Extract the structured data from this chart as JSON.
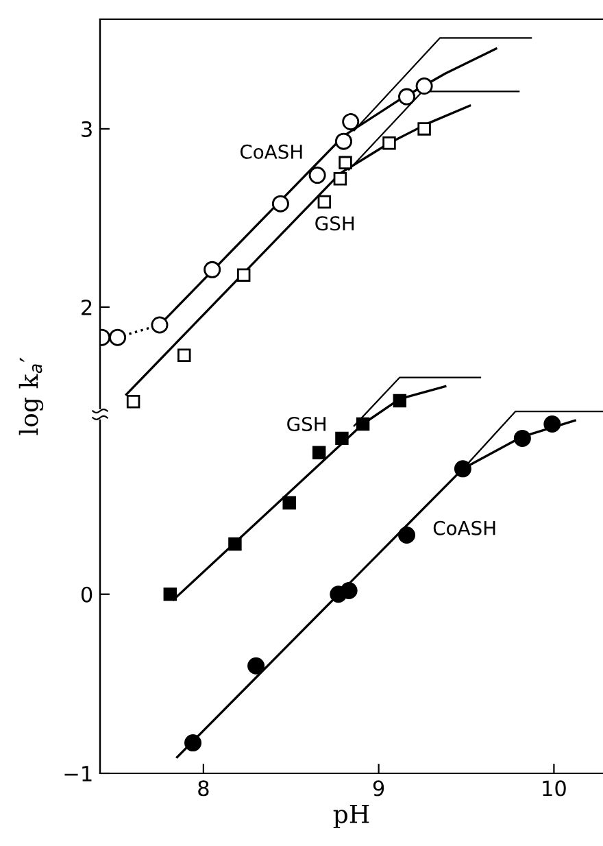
{
  "chart_data": [
    {
      "type": "scatter",
      "xlim": [
        7.41,
        10.28
      ],
      "ylim": [
        -0.615,
        3.615
      ],
      "yticks": [
        2,
        3
      ],
      "tick_labels": "y",
      "grid": false,
      "legend": false,
      "series": [
        {
          "marker": "circle",
          "color": "#ffffff",
          "x": [
            7.42,
            7.51,
            7.75,
            8.05,
            8.44,
            8.65,
            8.8,
            8.84,
            9.16,
            9.26
          ],
          "values": [
            1.83,
            1.83,
            1.9,
            2.21,
            2.58,
            2.74,
            2.93,
            3.04,
            3.18,
            3.24
          ]
        },
        {
          "marker": "square",
          "color": "#ffffff",
          "x": [
            7.6,
            7.89,
            8.23,
            8.69,
            8.78,
            8.81,
            9.06,
            9.26
          ],
          "values": [
            1.47,
            1.73,
            2.18,
            2.59,
            2.72,
            2.81,
            2.92,
            3.0
          ]
        },
        {
          "type": "line",
          "line_style": "dotted",
          "color": "#000000",
          "x": [
            7.51,
            7.75
          ],
          "values": [
            1.83,
            1.9
          ]
        },
        {
          "type": "line",
          "line_style": "solid",
          "color": "#000000",
          "x": [
            7.75,
            8.8,
            9.13,
            9.38,
            9.67
          ],
          "values": [
            1.9,
            2.96,
            3.17,
            3.31,
            3.45
          ]
        },
        {
          "type": "line",
          "line_style": "solid",
          "color": "#000000",
          "x": [
            8.86,
            9.35,
            9.87
          ],
          "values": [
            2.99,
            3.51,
            3.51
          ]
        },
        {
          "type": "line",
          "line_style": "solid",
          "color": "#000000",
          "x": [
            7.56,
            8.78,
            9.06,
            9.28,
            9.52
          ],
          "values": [
            1.51,
            2.75,
            2.92,
            3.03,
            3.13
          ]
        },
        {
          "type": "line",
          "line_style": "solid",
          "color": "#000000",
          "x": [
            8.83,
            9.25,
            9.8
          ],
          "values": [
            2.77,
            3.21,
            3.21
          ]
        }
      ],
      "annotations": [
        "CoASH",
        "GSH"
      ]
    },
    {
      "type": "scatter",
      "xlim": [
        7.41,
        10.28
      ],
      "ylim": [
        -1,
        3.21
      ],
      "xticks": [
        8,
        9,
        10
      ],
      "yticks": [
        -1,
        0
      ],
      "xlabel": "pH",
      "ylabel": "log k$_{a}$′",
      "grid": false,
      "legend": false,
      "series": [
        {
          "marker": "square",
          "color": "#000000",
          "x": [
            7.81,
            8.18,
            8.49,
            8.66,
            8.79,
            8.91,
            9.12
          ],
          "values": [
            0.0,
            0.28,
            0.51,
            0.79,
            0.87,
            0.95,
            1.08
          ]
        },
        {
          "marker": "circle",
          "color": "#000000",
          "x": [
            7.94,
            8.3,
            8.77,
            8.83,
            9.16,
            9.48,
            9.82,
            9.99
          ],
          "values": [
            -0.83,
            -0.4,
            0.0,
            0.02,
            0.33,
            0.7,
            0.87,
            0.95
          ]
        },
        {
          "type": "line",
          "line_style": "solid",
          "color": "#000000",
          "x": [
            7.83,
            8.91,
            9.12,
            9.38
          ],
          "values": [
            -0.03,
            0.95,
            1.09,
            1.16
          ]
        },
        {
          "type": "line",
          "line_style": "solid",
          "color": "#000000",
          "x": [
            8.86,
            9.12,
            9.58
          ],
          "values": [
            0.94,
            1.21,
            1.21
          ]
        },
        {
          "type": "line",
          "line_style": "solid",
          "color": "#000000",
          "x": [
            7.85,
            9.48,
            9.82,
            10.12
          ],
          "values": [
            -0.91,
            0.7,
            0.88,
            0.97
          ]
        },
        {
          "type": "line",
          "line_style": "solid",
          "color": "#000000",
          "x": [
            9.5,
            9.78,
            10.28
          ],
          "values": [
            0.72,
            1.02,
            1.02
          ]
        }
      ],
      "annotations": [
        "GSH",
        "CoASH"
      ]
    }
  ]
}
